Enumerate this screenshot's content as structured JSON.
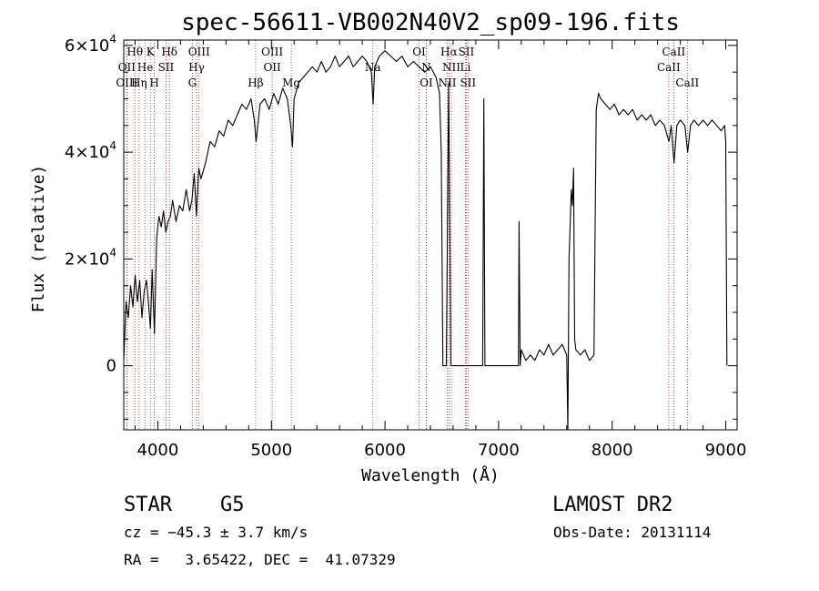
{
  "chart_data": {
    "type": "line",
    "title": "spec-56611-VB002N40V2_sp09-196.fits",
    "xlabel": "Wavelength (Å)",
    "ylabel": "Flux (relative)",
    "xlim": [
      3700,
      9100
    ],
    "ylim": [
      -12000,
      61000
    ],
    "xticks": [
      4000,
      5000,
      6000,
      7000,
      8000,
      9000
    ],
    "xtick_labels": [
      "4000",
      "5000",
      "6000",
      "7000",
      "8000",
      "9000"
    ],
    "yticks": [
      0,
      20000,
      40000,
      60000
    ],
    "ytick_labels": [
      {
        "base": "0",
        "exp": ""
      },
      {
        "base": "2×10",
        "exp": "4"
      },
      {
        "base": "4×10",
        "exp": "4"
      },
      {
        "base": "6×10",
        "exp": "4"
      }
    ],
    "grid": false,
    "line_color": "#000000",
    "marker_color": "#a52a2a",
    "spectral_lines": [
      {
        "label": "Hθ",
        "wavelength": 3798,
        "row": 0
      },
      {
        "label": "OII",
        "wavelength": 3727,
        "row": 1
      },
      {
        "label": "OIII",
        "wavelength": 3727,
        "row": 2
      },
      {
        "label": "He",
        "wavelength": 3889,
        "row": 1
      },
      {
        "label": "Hη",
        "wavelength": 3835,
        "row": 2
      },
      {
        "label": "K",
        "wavelength": 3934,
        "row": 0
      },
      {
        "label": "H",
        "wavelength": 3969,
        "row": 2
      },
      {
        "label": "SII",
        "wavelength": 4072,
        "row": 1
      },
      {
        "label": "Hδ",
        "wavelength": 4102,
        "row": 0
      },
      {
        "label": "OIII",
        "wavelength": 4363,
        "row": 0
      },
      {
        "label": "Hγ",
        "wavelength": 4341,
        "row": 1
      },
      {
        "label": "G",
        "wavelength": 4304,
        "row": 2
      },
      {
        "label": "OIII",
        "wavelength": 5007,
        "row": 0
      },
      {
        "label": "OII",
        "wavelength": 5007,
        "row": 1
      },
      {
        "label": "Hβ",
        "wavelength": 4861,
        "row": 2
      },
      {
        "label": "Mg",
        "wavelength": 5175,
        "row": 2
      },
      {
        "label": "Na",
        "wavelength": 5893,
        "row": 1
      },
      {
        "label": "OI",
        "wavelength": 6300,
        "row": 0
      },
      {
        "label": "N",
        "wavelength": 6364,
        "row": 1
      },
      {
        "label": "OI",
        "wavelength": 6364,
        "row": 2
      },
      {
        "label": "Hα",
        "wavelength": 6563,
        "row": 0
      },
      {
        "label": "SII",
        "wavelength": 6716,
        "row": 0
      },
      {
        "label": "NII",
        "wavelength": 6584,
        "row": 1
      },
      {
        "label": "Li",
        "wavelength": 6708,
        "row": 1
      },
      {
        "label": "NII",
        "wavelength": 6548,
        "row": 2
      },
      {
        "label": "SII",
        "wavelength": 6731,
        "row": 2
      },
      {
        "label": "CaII",
        "wavelength": 8542,
        "row": 0
      },
      {
        "label": "CaII",
        "wavelength": 8498,
        "row": 1
      },
      {
        "label": "CaII",
        "wavelength": 8662,
        "row": 2
      }
    ],
    "series": [
      {
        "points": [
          [
            3700,
            1000
          ],
          [
            3720,
            12000
          ],
          [
            3740,
            9000
          ],
          [
            3760,
            15000
          ],
          [
            3780,
            11000
          ],
          [
            3800,
            17000
          ],
          [
            3820,
            12000
          ],
          [
            3840,
            16000
          ],
          [
            3860,
            9000
          ],
          [
            3880,
            14000
          ],
          [
            3900,
            16000
          ],
          [
            3920,
            11000
          ],
          [
            3935,
            7000
          ],
          [
            3950,
            18000
          ],
          [
            3970,
            6000
          ],
          [
            3990,
            24000
          ],
          [
            4010,
            28000
          ],
          [
            4030,
            26000
          ],
          [
            4050,
            29000
          ],
          [
            4070,
            25000
          ],
          [
            4090,
            27000
          ],
          [
            4110,
            28000
          ],
          [
            4130,
            31000
          ],
          [
            4160,
            27000
          ],
          [
            4190,
            30000
          ],
          [
            4220,
            29000
          ],
          [
            4250,
            33000
          ],
          [
            4280,
            29000
          ],
          [
            4300,
            31000
          ],
          [
            4320,
            36000
          ],
          [
            4340,
            28000
          ],
          [
            4360,
            37000
          ],
          [
            4380,
            35000
          ],
          [
            4420,
            38000
          ],
          [
            4460,
            42000
          ],
          [
            4500,
            41000
          ],
          [
            4540,
            44000
          ],
          [
            4580,
            43000
          ],
          [
            4620,
            46000
          ],
          [
            4660,
            45000
          ],
          [
            4700,
            47000
          ],
          [
            4740,
            49000
          ],
          [
            4780,
            48000
          ],
          [
            4820,
            50000
          ],
          [
            4850,
            46000
          ],
          [
            4865,
            42000
          ],
          [
            4900,
            49000
          ],
          [
            4940,
            50000
          ],
          [
            4980,
            48000
          ],
          [
            5020,
            51000
          ],
          [
            5060,
            49000
          ],
          [
            5100,
            52000
          ],
          [
            5140,
            50000
          ],
          [
            5170,
            45000
          ],
          [
            5185,
            41000
          ],
          [
            5200,
            50000
          ],
          [
            5240,
            53000
          ],
          [
            5280,
            54000
          ],
          [
            5320,
            55000
          ],
          [
            5360,
            56000
          ],
          [
            5400,
            55000
          ],
          [
            5440,
            57000
          ],
          [
            5480,
            55000
          ],
          [
            5520,
            56000
          ],
          [
            5560,
            58000
          ],
          [
            5600,
            56000
          ],
          [
            5640,
            57000
          ],
          [
            5680,
            58000
          ],
          [
            5720,
            56000
          ],
          [
            5760,
            57000
          ],
          [
            5800,
            58000
          ],
          [
            5840,
            57000
          ],
          [
            5880,
            55000
          ],
          [
            5895,
            49000
          ],
          [
            5910,
            56000
          ],
          [
            5950,
            58000
          ],
          [
            6000,
            59000
          ],
          [
            6050,
            58000
          ],
          [
            6100,
            57000
          ],
          [
            6150,
            58000
          ],
          [
            6200,
            56000
          ],
          [
            6250,
            57000
          ],
          [
            6300,
            56000
          ],
          [
            6350,
            55000
          ],
          [
            6400,
            56000
          ],
          [
            6450,
            54000
          ],
          [
            6480,
            51000
          ],
          [
            6495,
            40000
          ],
          [
            6510,
            0
          ],
          [
            6540,
            0
          ],
          [
            6560,
            53000
          ],
          [
            6580,
            0
          ],
          [
            6600,
            0
          ],
          [
            6650,
            0
          ],
          [
            6700,
            0
          ],
          [
            6750,
            0
          ],
          [
            6800,
            0
          ],
          [
            6860,
            0
          ],
          [
            6870,
            50000
          ],
          [
            6880,
            0
          ],
          [
            6950,
            0
          ],
          [
            7000,
            0
          ],
          [
            7100,
            0
          ],
          [
            7160,
            0
          ],
          [
            7175,
            0
          ],
          [
            7180,
            27000
          ],
          [
            7190,
            0
          ],
          [
            7200,
            3000
          ],
          [
            7240,
            1000
          ],
          [
            7280,
            2000
          ],
          [
            7320,
            1000
          ],
          [
            7360,
            3000
          ],
          [
            7400,
            2000
          ],
          [
            7440,
            4000
          ],
          [
            7480,
            2000
          ],
          [
            7520,
            3000
          ],
          [
            7560,
            4000
          ],
          [
            7600,
            2000
          ],
          [
            7610,
            -12000
          ],
          [
            7620,
            20000
          ],
          [
            7640,
            33000
          ],
          [
            7650,
            30000
          ],
          [
            7660,
            37000
          ],
          [
            7670,
            5000
          ],
          [
            7680,
            3000
          ],
          [
            7720,
            2000
          ],
          [
            7760,
            3000
          ],
          [
            7800,
            1000
          ],
          [
            7840,
            2000
          ],
          [
            7860,
            48000
          ],
          [
            7880,
            51000
          ],
          [
            7900,
            50000
          ],
          [
            7940,
            49000
          ],
          [
            7980,
            48000
          ],
          [
            8020,
            49000
          ],
          [
            8060,
            47000
          ],
          [
            8100,
            48000
          ],
          [
            8140,
            47000
          ],
          [
            8180,
            48000
          ],
          [
            8220,
            46000
          ],
          [
            8260,
            47000
          ],
          [
            8300,
            46000
          ],
          [
            8340,
            47000
          ],
          [
            8380,
            45000
          ],
          [
            8420,
            46000
          ],
          [
            8460,
            45000
          ],
          [
            8500,
            42000
          ],
          [
            8520,
            45000
          ],
          [
            8545,
            38000
          ],
          [
            8570,
            45000
          ],
          [
            8600,
            46000
          ],
          [
            8640,
            45000
          ],
          [
            8665,
            40000
          ],
          [
            8690,
            45000
          ],
          [
            8720,
            46000
          ],
          [
            8760,
            45000
          ],
          [
            8800,
            46000
          ],
          [
            8840,
            45000
          ],
          [
            8880,
            46000
          ],
          [
            8920,
            45000
          ],
          [
            8960,
            44000
          ],
          [
            8990,
            45000
          ],
          [
            9000,
            42000
          ],
          [
            9010,
            0
          ]
        ]
      }
    ]
  },
  "footer": {
    "object_class": "STAR",
    "subclass": "G5",
    "survey": "LAMOST DR2",
    "cz": "cz = −45.3 ± 3.7 km/s",
    "obs_date": "Obs-Date: 20131114",
    "coords": "RA =   3.65422, DEC =  41.07329"
  }
}
